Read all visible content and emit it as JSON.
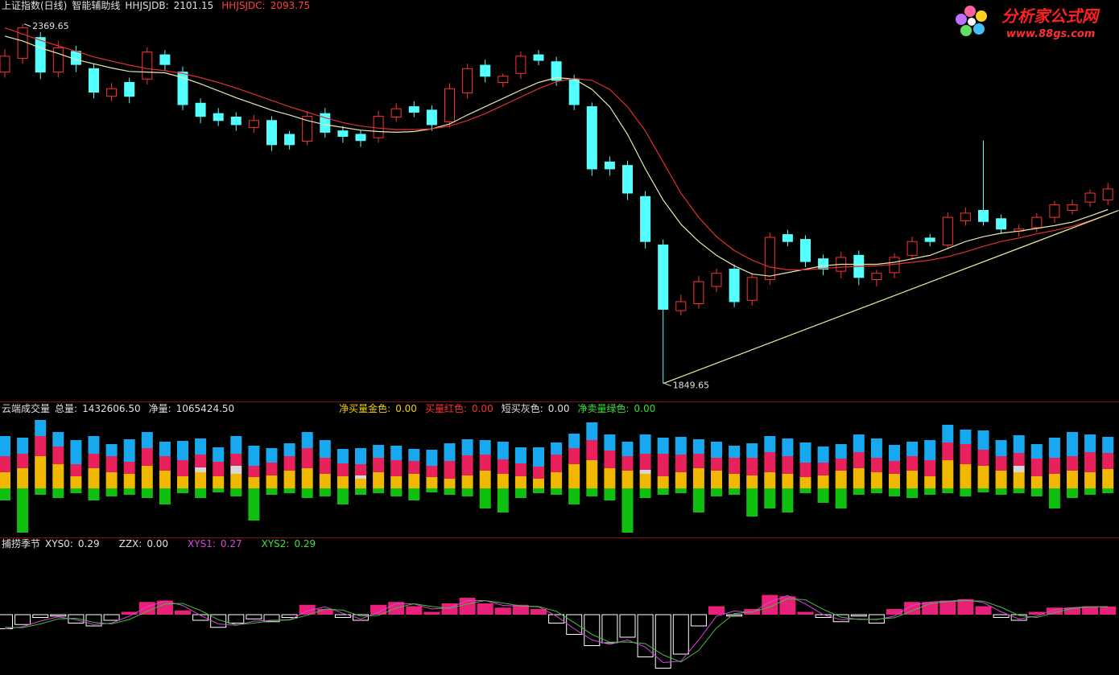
{
  "chart_data": [
    {
      "type": "candlestick",
      "title": "上证指数(日线)",
      "subtitle": "智能辅助线",
      "readouts": [
        {
          "label": "HHJSJDB:",
          "value": 2101.15,
          "color": "#e0e0e0"
        },
        {
          "label": "HHJSJDC:",
          "value": 2093.75,
          "color": "#ff4040"
        }
      ],
      "open": [
        2300,
        2320,
        2350,
        2300,
        2330,
        2305,
        2265,
        2285,
        2290,
        2325,
        2300,
        2255,
        2240,
        2235,
        2220,
        2230,
        2210,
        2200,
        2240,
        2215,
        2210,
        2205,
        2235,
        2250,
        2245,
        2228,
        2270,
        2310,
        2285,
        2298,
        2325,
        2315,
        2290,
        2250,
        2170,
        2165,
        2120,
        2050,
        1955,
        1965,
        1990,
        2015,
        1970,
        2000,
        2065,
        2058,
        2030,
        2012,
        2035,
        2000,
        2010,
        2035,
        2060,
        2050,
        2085,
        2100,
        2088,
        2070,
        2075,
        2090,
        2100,
        2112,
        2115
      ],
      "high": [
        2333,
        2369.65,
        2358,
        2345,
        2338,
        2312,
        2284,
        2292,
        2336,
        2332,
        2308,
        2262,
        2248,
        2242,
        2238,
        2236,
        2215,
        2244,
        2248,
        2222,
        2216,
        2244,
        2255,
        2258,
        2252,
        2284,
        2312,
        2318,
        2298,
        2330,
        2332,
        2322,
        2296,
        2256,
        2178,
        2172,
        2128,
        2058,
        1978,
        2005,
        2016,
        2022,
        2010,
        2068,
        2072,
        2064,
        2036,
        2040,
        2042,
        2014,
        2038,
        2062,
        2066,
        2097,
        2104,
        2201,
        2094,
        2080,
        2096,
        2114,
        2116,
        2130,
        2140
      ],
      "low": [
        2292,
        2312,
        2290,
        2292,
        2300,
        2262,
        2258,
        2255,
        2282,
        2302,
        2245,
        2226,
        2222,
        2215,
        2212,
        2186,
        2188,
        2194,
        2205,
        2198,
        2192,
        2198,
        2228,
        2235,
        2215,
        2220,
        2262,
        2285,
        2278,
        2290,
        2310,
        2280,
        2245,
        2150,
        2150,
        2115,
        2045,
        1849.65,
        1948,
        1958,
        1982,
        1960,
        1962,
        1992,
        2048,
        2018,
        2006,
        2002,
        1992,
        1990,
        2002,
        2028,
        2048,
        2044,
        2078,
        2078,
        2066,
        2062,
        2068,
        2082,
        2094,
        2105,
        2108
      ],
      "close": [
        2323,
        2364,
        2300,
        2335,
        2311,
        2271,
        2276,
        2265,
        2329,
        2311,
        2253,
        2236,
        2230,
        2224,
        2230,
        2195,
        2195,
        2236,
        2213,
        2207,
        2201,
        2236,
        2247,
        2242,
        2224,
        2276,
        2305,
        2294,
        2294,
        2323,
        2317,
        2288,
        2253,
        2160,
        2160,
        2125,
        2055,
        1957,
        1968,
        1997,
        2009,
        1968,
        2003,
        2061,
        2055,
        2026,
        2015,
        2032,
        2003,
        2009,
        2032,
        2055,
        2055,
        2090,
        2096,
        2084,
        2073,
        2073,
        2090,
        2108,
        2108,
        2125,
        2131
      ],
      "up_color": "#ff3232",
      "down_color": "#54ffff",
      "lines": [
        {
          "color": "#e8e8b0",
          "values": [
            2352,
            2345,
            2335,
            2327,
            2318,
            2312,
            2306,
            2301,
            2300,
            2299,
            2292,
            2283,
            2273,
            2263,
            2254,
            2245,
            2238,
            2230,
            2224,
            2220,
            2216,
            2214,
            2213,
            2214,
            2218,
            2225,
            2238,
            2250,
            2262,
            2274,
            2285,
            2292,
            2290,
            2275,
            2250,
            2210,
            2160,
            2115,
            2080,
            2055,
            2035,
            2020,
            2008,
            2005,
            2010,
            2015,
            2020,
            2022,
            2022,
            2022,
            2025,
            2030,
            2035,
            2045,
            2055,
            2062,
            2067,
            2070,
            2074,
            2078,
            2083,
            2092,
            2101.15
          ]
        },
        {
          "color": "#e03030",
          "values": [
            2364,
            2355,
            2346,
            2338,
            2330,
            2322,
            2316,
            2310,
            2305,
            2302,
            2298,
            2292,
            2285,
            2277,
            2268,
            2259,
            2250,
            2242,
            2234,
            2227,
            2222,
            2219,
            2217,
            2217,
            2218,
            2222,
            2230,
            2240,
            2252,
            2264,
            2276,
            2286,
            2291,
            2288,
            2275,
            2250,
            2215,
            2170,
            2125,
            2090,
            2062,
            2042,
            2028,
            2018,
            2014,
            2014,
            2016,
            2018,
            2019,
            2020,
            2022,
            2025,
            2028,
            2033,
            2040,
            2048,
            2055,
            2060,
            2066,
            2071,
            2077,
            2085,
            2093.75
          ]
        }
      ],
      "trend_line": {
        "x": [
          37,
          62.6
        ],
        "values": [
          1849.65,
          2100
        ],
        "color": "#f0f0a0"
      },
      "annotations": [
        {
          "x": 1,
          "value": 2369.65
        },
        {
          "x": 37,
          "value": 1849.65
        }
      ],
      "ylim": [
        1826,
        2381
      ]
    },
    {
      "type": "stacked_bar",
      "title": "云端成交量",
      "readouts": [
        {
          "label": "总量:",
          "value": "1432606.50",
          "color": "#e0e0e0"
        },
        {
          "label": "净量:",
          "value": "1065424.50",
          "color": "#e0e0e0"
        },
        {
          "label": "净买量金色:",
          "value": "0.00",
          "color": "#f0d000"
        },
        {
          "label": "买量红色:",
          "value": "0.00",
          "color": "#ff3030"
        },
        {
          "label": "短买灰色:",
          "value": "0.00",
          "color": "#e0e0e0"
        },
        {
          "label": "净卖量绿色:",
          "value": "0.00",
          "color": "#30e030"
        }
      ],
      "series": [
        {
          "color": "#f0b800",
          "values": [
            20,
            25,
            40,
            30,
            15,
            25,
            20,
            18,
            28,
            22,
            15,
            20,
            15,
            18,
            14,
            16,
            22,
            25,
            18,
            15,
            12,
            20,
            15,
            18,
            14,
            12,
            16,
            22,
            18,
            15,
            12,
            20,
            30,
            35,
            25,
            22,
            18,
            15,
            20,
            25,
            22,
            18,
            16,
            20,
            18,
            14,
            16,
            22,
            25,
            20,
            18,
            22,
            15,
            35,
            30,
            28,
            22,
            20,
            15,
            18,
            22,
            20,
            24
          ]
        },
        {
          "color": "#d8d8d8",
          "values": [
            0,
            0,
            0,
            0,
            0,
            0,
            0,
            0,
            0,
            0,
            0,
            6,
            0,
            10,
            0,
            0,
            0,
            0,
            0,
            0,
            4,
            0,
            0,
            0,
            0,
            0,
            0,
            0,
            0,
            0,
            0,
            0,
            0,
            0,
            0,
            0,
            5,
            0,
            0,
            0,
            0,
            0,
            0,
            0,
            0,
            0,
            0,
            0,
            0,
            0,
            0,
            0,
            0,
            0,
            0,
            0,
            0,
            8,
            0,
            0,
            0,
            0,
            0
          ]
        },
        {
          "color": "#e8205c",
          "values": [
            20,
            18,
            25,
            22,
            15,
            18,
            20,
            15,
            22,
            18,
            20,
            16,
            18,
            15,
            14,
            16,
            18,
            25,
            20,
            16,
            14,
            18,
            20,
            16,
            14,
            22,
            25,
            20,
            18,
            16,
            15,
            22,
            20,
            25,
            22,
            18,
            20,
            28,
            22,
            18,
            16,
            20,
            22,
            25,
            22,
            18,
            16,
            15,
            20,
            18,
            16,
            18,
            20,
            22,
            25,
            20,
            18,
            16,
            22,
            20,
            18,
            25,
            20
          ]
        },
        {
          "color": "#18a8f0",
          "values": [
            25,
            20,
            20,
            18,
            30,
            22,
            15,
            28,
            20,
            18,
            24,
            20,
            18,
            22,
            25,
            18,
            16,
            20,
            22,
            18,
            20,
            16,
            18,
            15,
            20,
            22,
            20,
            18,
            22,
            20,
            24,
            15,
            18,
            22,
            20,
            18,
            24,
            20,
            22,
            18,
            20,
            15,
            18,
            20,
            22,
            25,
            20,
            18,
            22,
            24,
            20,
            18,
            25,
            22,
            18,
            24,
            20,
            22,
            18,
            25,
            30,
            22,
            20
          ]
        },
        {
          "color": "#10c010",
          "values": [
            -15,
            -55,
            -8,
            -12,
            -6,
            -15,
            -10,
            -8,
            -12,
            -20,
            -6,
            -12,
            -5,
            -10,
            -40,
            -8,
            -6,
            -12,
            -10,
            -20,
            -8,
            -6,
            -10,
            -15,
            -5,
            -8,
            -10,
            -25,
            -30,
            -12,
            -6,
            -8,
            -20,
            -10,
            -15,
            -55,
            -12,
            -8,
            -6,
            -30,
            -10,
            -8,
            -35,
            -25,
            -30,
            -6,
            -18,
            -25,
            -8,
            -6,
            -10,
            -12,
            -8,
            -6,
            -10,
            -5,
            -8,
            -6,
            -10,
            -25,
            -12,
            -8,
            -6
          ]
        }
      ],
      "ylim": [
        -58,
        88
      ]
    },
    {
      "type": "bar",
      "title": "捕捞季节",
      "readouts": [
        {
          "label": "XYS0:",
          "value": 0.29,
          "color": "#e0e0e0"
        },
        {
          "label": "ZZX:",
          "value": "0.00",
          "color": "#e0e0e0"
        },
        {
          "label": "XYS1:",
          "value": 0.27,
          "color": "#e040e0"
        },
        {
          "label": "XYS2:",
          "value": 0.29,
          "color": "#40e040"
        }
      ],
      "values": [
        -0.5,
        -0.35,
        -0.1,
        -0.05,
        -0.3,
        -0.4,
        -0.2,
        0.1,
        0.45,
        0.5,
        0.15,
        -0.2,
        -0.45,
        -0.3,
        -0.15,
        -0.25,
        -0.1,
        0.35,
        0.2,
        -0.1,
        -0.2,
        0.35,
        0.45,
        0.3,
        0.1,
        0.4,
        0.6,
        0.4,
        0.25,
        0.35,
        0.2,
        -0.3,
        -0.7,
        -1.1,
        -1.0,
        -0.8,
        -1.5,
        -1.9,
        -1.4,
        -0.4,
        0.3,
        -0.05,
        0.2,
        0.7,
        0.65,
        0.1,
        -0.1,
        -0.25,
        -0.05,
        -0.3,
        0.2,
        0.45,
        0.45,
        0.5,
        0.55,
        0.3,
        -0.1,
        -0.2,
        0.1,
        0.25,
        0.25,
        0.3,
        0.29
      ],
      "pos_color": "#e8207a",
      "neg_color": "#ffffff",
      "lines": [
        {
          "color": "#e040e0",
          "values": [
            -0.5,
            -0.43,
            -0.23,
            -0.08,
            -0.18,
            -0.35,
            -0.3,
            -0.05,
            0.28,
            0.48,
            0.33,
            -0.03,
            -0.33,
            -0.38,
            -0.23,
            -0.2,
            -0.18,
            0.13,
            0.28,
            0.05,
            -0.15,
            0.08,
            0.4,
            0.38,
            0.2,
            0.25,
            0.5,
            0.5,
            0.33,
            0.3,
            0.28,
            -0.05,
            -0.5,
            -0.9,
            -1.05,
            -0.9,
            -1.15,
            -1.7,
            -1.65,
            -0.9,
            -0.05,
            0.13,
            0.08,
            0.45,
            0.68,
            0.38,
            0,
            -0.18,
            -0.15,
            -0.18,
            -0.05,
            0.33,
            0.45,
            0.48,
            0.53,
            0.43,
            0.1,
            -0.15,
            -0.05,
            0.18,
            0.25,
            0.28,
            0.27
          ]
        },
        {
          "color": "#40c040",
          "values": [
            -0.45,
            -0.46,
            -0.33,
            -0.15,
            -0.13,
            -0.27,
            -0.33,
            -0.17,
            0.12,
            0.38,
            0.4,
            0.15,
            -0.18,
            -0.36,
            -0.3,
            -0.21,
            -0.19,
            -0.02,
            0.2,
            0.16,
            -0.05,
            -0.03,
            0.24,
            0.39,
            0.29,
            0.22,
            0.38,
            0.5,
            0.41,
            0.31,
            0.29,
            0.12,
            -0.28,
            -0.7,
            -0.98,
            -0.97,
            -1.03,
            -1.43,
            -1.68,
            -1.27,
            -0.47,
            0.04,
            0.1,
            0.27,
            0.57,
            0.53,
            0.19,
            -0.09,
            -0.17,
            -0.16,
            -0.11,
            0.14,
            0.39,
            0.46,
            0.5,
            0.48,
            0.26,
            -0.03,
            -0.1,
            0.07,
            0.22,
            0.27,
            0.29
          ]
        }
      ],
      "ylim": [
        -2,
        2.4
      ]
    }
  ],
  "logo": {
    "name": "分析家公式网",
    "url": "www.88gs.com"
  }
}
